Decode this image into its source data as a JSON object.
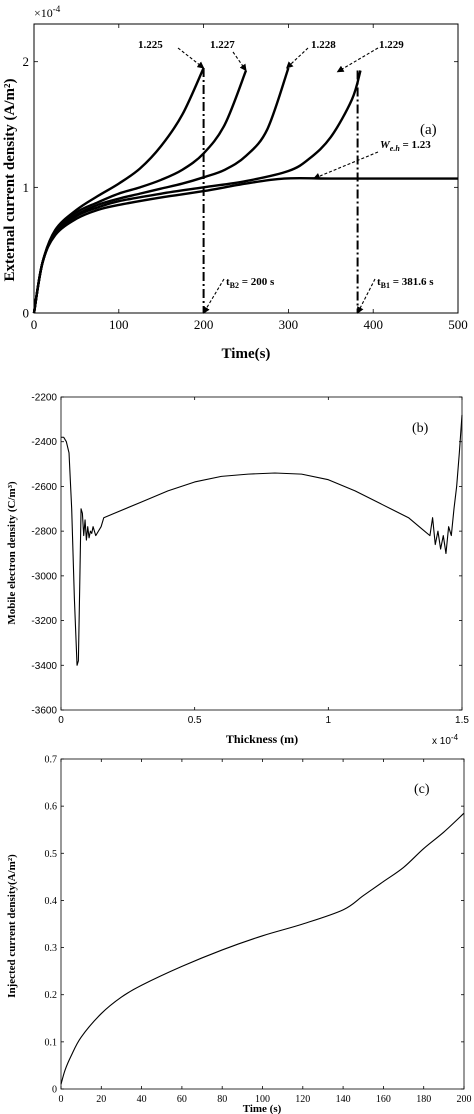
{
  "chart_data": [
    {
      "type": "line",
      "panel_label": "(a)",
      "xlabel": "Time(s)",
      "ylabel": "External current density (A/m²)",
      "xlim": [
        0,
        500
      ],
      "ylim": [
        0,
        2.3
      ],
      "y_exponent": "×10",
      "y_exponent_power": "-4",
      "x_ticks": [
        "0",
        "100",
        "200",
        "300",
        "400",
        "500"
      ],
      "y_ticks": [
        "0",
        "1",
        "2"
      ],
      "x_tick_values": [
        0,
        100,
        200,
        300,
        400,
        500
      ],
      "y_tick_values": [
        0,
        1,
        2
      ],
      "grid": false,
      "series": [
        {
          "label": "1.225",
          "x": [
            0,
            10,
            25,
            50,
            75,
            100,
            125,
            150,
            175,
            200
          ],
          "y": [
            0,
            0.4,
            0.66,
            0.82,
            0.93,
            1.03,
            1.15,
            1.33,
            1.58,
            1.95
          ]
        },
        {
          "label": "1.227",
          "x": [
            0,
            10,
            25,
            50,
            75,
            100,
            125,
            150,
            175,
            200,
            225,
            250
          ],
          "y": [
            0,
            0.4,
            0.65,
            0.8,
            0.88,
            0.95,
            1.0,
            1.06,
            1.14,
            1.27,
            1.5,
            1.93
          ]
        },
        {
          "label": "1.228",
          "x": [
            0,
            10,
            25,
            50,
            75,
            100,
            125,
            150,
            175,
            200,
            225,
            250,
            275,
            300
          ],
          "y": [
            0,
            0.4,
            0.64,
            0.78,
            0.86,
            0.91,
            0.95,
            0.99,
            1.03,
            1.08,
            1.14,
            1.25,
            1.46,
            1.95
          ]
        },
        {
          "label": "1.229",
          "x": [
            0,
            10,
            25,
            50,
            75,
            100,
            150,
            200,
            250,
            300,
            325,
            350,
            375,
            385
          ],
          "y": [
            0,
            0.4,
            0.63,
            0.77,
            0.84,
            0.89,
            0.95,
            1.0,
            1.05,
            1.13,
            1.23,
            1.4,
            1.7,
            1.93
          ]
        },
        {
          "label": "W_e.h = 1.23",
          "x": [
            0,
            10,
            25,
            50,
            75,
            100,
            150,
            200,
            250,
            295,
            350,
            400,
            450,
            500
          ],
          "y": [
            0,
            0.4,
            0.62,
            0.75,
            0.82,
            0.86,
            0.92,
            0.97,
            1.03,
            1.07,
            1.07,
            1.07,
            1.07,
            1.07
          ]
        }
      ],
      "annotations": {
        "labels": [
          "1.225",
          "1.227",
          "1.228",
          "1.229"
        ],
        "weh_prefix": "W",
        "weh_sub": "e.h",
        "weh_suffix": " = 1.23",
        "tb2_prefix": "t",
        "tb2_sub": "B2",
        "tb2_suffix": " = 200 s",
        "tb1_prefix": "t",
        "tb1_sub": "B1",
        "tb1_suffix": " = 381.6 s",
        "vlines_x": [
          200,
          381.6
        ]
      }
    },
    {
      "type": "line",
      "panel_label": "(b)",
      "xlabel": "Thickness (m)",
      "ylabel": "Mobile electron density (C/m³)",
      "xlim": [
        0,
        1.5
      ],
      "ylim": [
        -3600,
        -2200
      ],
      "x_exponent": "x 10",
      "x_exponent_power": "-4",
      "x_ticks": [
        "0",
        "0.5",
        "1",
        "1.5"
      ],
      "y_ticks": [
        "-2200",
        "-2400",
        "-2600",
        "-2800",
        "-3000",
        "-3200",
        "-3400",
        "-3600"
      ],
      "x_tick_values": [
        0,
        0.5,
        1,
        1.5
      ],
      "y_tick_values": [
        -2200,
        -2400,
        -2600,
        -2800,
        -3000,
        -3200,
        -3400,
        -3600
      ],
      "grid": false,
      "series": [
        {
          "x": [
            0,
            0.01,
            0.02,
            0.03,
            0.04,
            0.05,
            0.06,
            0.065,
            0.07,
            0.075,
            0.08,
            0.085,
            0.09,
            0.095,
            0.1,
            0.105,
            0.11,
            0.115,
            0.12,
            0.13,
            0.14,
            0.15,
            0.16,
            0.2,
            0.3,
            0.4,
            0.5,
            0.6,
            0.7,
            0.8,
            0.9,
            1.0,
            1.1,
            1.2,
            1.3,
            1.35,
            1.38,
            1.39,
            1.4,
            1.41,
            1.42,
            1.43,
            1.44,
            1.45,
            1.46,
            1.47,
            1.48,
            1.49,
            1.5
          ],
          "y": [
            -2380,
            -2380,
            -2400,
            -2450,
            -2700,
            -3100,
            -3400,
            -3380,
            -3050,
            -2700,
            -2720,
            -2820,
            -2750,
            -2840,
            -2780,
            -2830,
            -2800,
            -2810,
            -2780,
            -2820,
            -2800,
            -2780,
            -2740,
            -2720,
            -2670,
            -2620,
            -2580,
            -2555,
            -2545,
            -2540,
            -2545,
            -2570,
            -2620,
            -2680,
            -2740,
            -2790,
            -2820,
            -2740,
            -2860,
            -2800,
            -2880,
            -2820,
            -2900,
            -2780,
            -2820,
            -2700,
            -2600,
            -2450,
            -2280
          ]
        }
      ]
    },
    {
      "type": "line",
      "panel_label": "(c)",
      "xlabel": "Time (s)",
      "ylabel": "Injected current density(A/m²)",
      "xlim": [
        0,
        200
      ],
      "ylim": [
        0,
        0.7
      ],
      "x_ticks": [
        "0",
        "20",
        "40",
        "60",
        "80",
        "100",
        "120",
        "140",
        "160",
        "180",
        "200"
      ],
      "y_ticks": [
        "0",
        "0.1",
        "0.2",
        "0.3",
        "0.4",
        "0.5",
        "0.6",
        "0.7"
      ],
      "x_tick_values": [
        0,
        20,
        40,
        60,
        80,
        100,
        120,
        140,
        160,
        180,
        200
      ],
      "y_tick_values": [
        0,
        0.1,
        0.2,
        0.3,
        0.4,
        0.5,
        0.6,
        0.7
      ],
      "grid": false,
      "series": [
        {
          "x": [
            0,
            2,
            5,
            10,
            20,
            30,
            40,
            60,
            80,
            100,
            120,
            140,
            150,
            160,
            170,
            180,
            190,
            200
          ],
          "y": [
            0.01,
            0.04,
            0.07,
            0.11,
            0.16,
            0.195,
            0.22,
            0.26,
            0.295,
            0.325,
            0.35,
            0.38,
            0.41,
            0.44,
            0.47,
            0.51,
            0.545,
            0.585
          ]
        }
      ]
    }
  ]
}
